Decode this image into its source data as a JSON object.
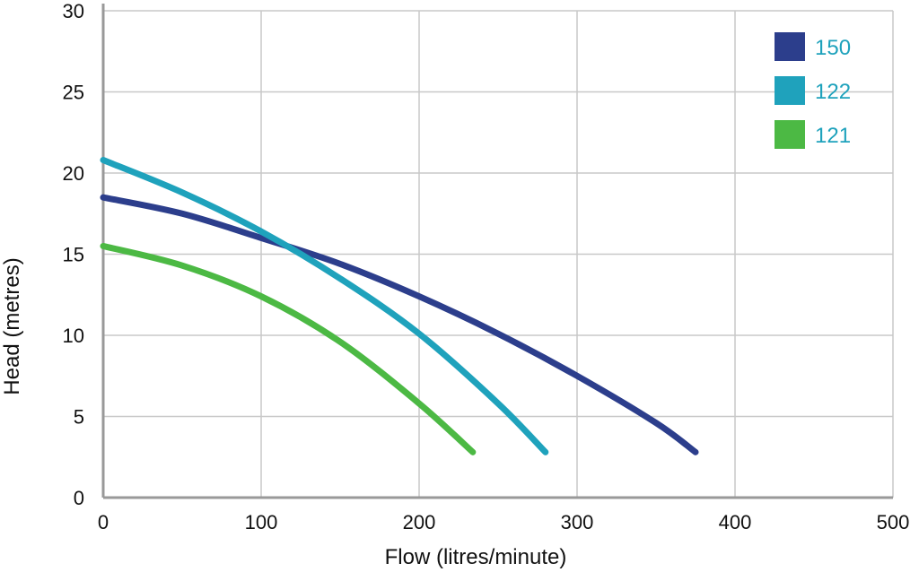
{
  "chart_data": {
    "type": "line",
    "title": "",
    "xlabel": "Flow (litres/minute)",
    "ylabel": "Head (metres)",
    "xlim": [
      0,
      500
    ],
    "ylim": [
      0,
      30
    ],
    "x_ticks": [
      "0",
      "100",
      "200",
      "300",
      "400",
      "500"
    ],
    "y_ticks": [
      "0",
      "5",
      "10",
      "15",
      "20",
      "25",
      "30"
    ],
    "grid": true,
    "legend": "top-right",
    "series": [
      {
        "name": "150",
        "color": "#2c3e8c",
        "x": [
          0,
          50,
          100,
          150,
          200,
          250,
          300,
          350,
          375
        ],
        "y": [
          18.5,
          17.5,
          16.0,
          14.4,
          12.4,
          10.1,
          7.5,
          4.6,
          2.8
        ]
      },
      {
        "name": "122",
        "color": "#1fa2bc",
        "x": [
          0,
          50,
          100,
          150,
          200,
          250,
          280
        ],
        "y": [
          20.8,
          18.8,
          16.4,
          13.5,
          10.1,
          5.8,
          2.8
        ]
      },
      {
        "name": "121",
        "color": "#4cb944",
        "x": [
          0,
          50,
          100,
          150,
          200,
          234
        ],
        "y": [
          15.5,
          14.3,
          12.4,
          9.6,
          5.8,
          2.8
        ]
      }
    ]
  }
}
